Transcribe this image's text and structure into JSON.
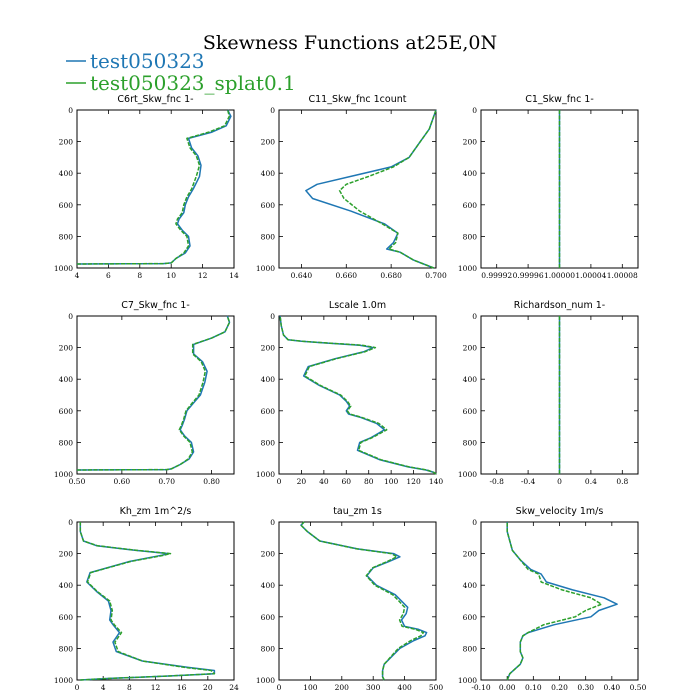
{
  "figure_title": "Skewness Functions at25E,0N",
  "legend": [
    {
      "name": "test050323",
      "color": "#1f77b4"
    },
    {
      "name": "test050323_splat0.1",
      "color": "#2ca02c"
    }
  ],
  "chart_data": [
    {
      "type": "line",
      "title": "C6rt_Skw_fnc",
      "unit": "1-",
      "xlim": [
        4,
        14
      ],
      "ylim": [
        1000,
        0
      ],
      "xticks": [
        4,
        6,
        8,
        10,
        12,
        14
      ],
      "xtick_labels": [
        "4",
        "6",
        "8",
        "10",
        "12",
        "14"
      ],
      "yticks": [
        0,
        200,
        400,
        600,
        800,
        1000
      ],
      "ytick_labels": [
        "0",
        "200",
        "400",
        "600",
        "800",
        "1000"
      ],
      "series": [
        {
          "name": "test050323",
          "x": [
            4.0,
            9.5,
            10.0,
            10.3,
            10.9,
            11.2,
            11.1,
            10.7,
            10.4,
            10.5,
            10.8,
            10.9,
            11.1,
            11.4,
            11.8,
            11.9,
            11.7,
            11.3,
            11.1,
            12.6,
            13.5,
            13.8,
            13.6
          ],
          "y": [
            975,
            972,
            968,
            940,
            905,
            860,
            800,
            760,
            720,
            690,
            650,
            600,
            550,
            500,
            420,
            350,
            290,
            240,
            180,
            140,
            100,
            40,
            0
          ]
        },
        {
          "name": "test050323_splat0.1",
          "x": [
            4.0,
            9.5,
            10.0,
            10.3,
            10.8,
            11.1,
            11.0,
            10.6,
            10.3,
            10.4,
            10.7,
            10.8,
            11.0,
            11.3,
            11.6,
            11.8,
            11.6,
            11.2,
            11.0,
            12.4,
            13.4,
            13.7,
            13.6
          ],
          "y": [
            975,
            972,
            968,
            940,
            905,
            860,
            800,
            760,
            720,
            690,
            650,
            600,
            550,
            500,
            420,
            350,
            290,
            240,
            180,
            140,
            100,
            40,
            0
          ]
        }
      ]
    },
    {
      "type": "line",
      "title": "C11_Skw_fnc",
      "unit": "1count",
      "xlim": [
        0.63,
        0.7
      ],
      "ylim": [
        1000,
        0
      ],
      "xticks": [
        0.64,
        0.66,
        0.68,
        0.7
      ],
      "xtick_labels": [
        "0.640",
        "0.660",
        "0.680",
        "0.700"
      ],
      "yticks": [
        0,
        200,
        400,
        600,
        800,
        1000
      ],
      "ytick_labels": [
        "0",
        "200",
        "400",
        "600",
        "800",
        "1000"
      ],
      "series": [
        {
          "name": "test050323",
          "x": [
            0.699,
            0.69,
            0.684,
            0.678,
            0.681,
            0.683,
            0.677,
            0.662,
            0.645,
            0.642,
            0.647,
            0.662,
            0.68,
            0.688,
            0.693,
            0.697,
            0.7
          ],
          "y": [
            1000,
            950,
            900,
            880,
            840,
            780,
            720,
            640,
            560,
            510,
            470,
            420,
            360,
            300,
            200,
            120,
            0
          ]
        },
        {
          "name": "test050323_splat0.1",
          "x": [
            0.699,
            0.69,
            0.684,
            0.679,
            0.682,
            0.683,
            0.676,
            0.666,
            0.659,
            0.657,
            0.66,
            0.67,
            0.681,
            0.688,
            0.693,
            0.697,
            0.7
          ],
          "y": [
            1000,
            950,
            900,
            880,
            840,
            780,
            720,
            640,
            560,
            510,
            470,
            420,
            360,
            300,
            200,
            120,
            0
          ]
        }
      ]
    },
    {
      "type": "line",
      "title": "C1_Skw_fnc",
      "unit": "1-",
      "xlim": [
        0.9999,
        1.0001
      ],
      "ylim": [
        1000,
        0
      ],
      "xticks": [
        0.99992,
        0.99996,
        1.0,
        1.00004,
        1.00008
      ],
      "xtick_labels": [
        "0.99992",
        "0.99996",
        "1.00000",
        "1.00004",
        "1.00008"
      ],
      "yticks": [
        0,
        200,
        400,
        600,
        800,
        1000
      ],
      "ytick_labels": [
        "0",
        "200",
        "400",
        "600",
        "800",
        "1000"
      ],
      "series": [
        {
          "name": "test050323",
          "x": [
            1.0,
            1.0
          ],
          "y": [
            1000,
            0
          ]
        },
        {
          "name": "test050323_splat0.1",
          "x": [
            1.0,
            1.0
          ],
          "y": [
            1000,
            0
          ]
        }
      ]
    },
    {
      "type": "line",
      "title": "C7_Skw_fnc",
      "unit": "1-",
      "xlim": [
        0.5,
        0.85
      ],
      "ylim": [
        1000,
        0
      ],
      "xticks": [
        0.5,
        0.6,
        0.7,
        0.8
      ],
      "xtick_labels": [
        "0.50",
        "0.60",
        "0.70",
        "0.80"
      ],
      "yticks": [
        0,
        200,
        400,
        600,
        800,
        1000
      ],
      "ytick_labels": [
        "0",
        "200",
        "400",
        "600",
        "800",
        "1000"
      ],
      "series": [
        {
          "name": "test050323",
          "x": [
            0.5,
            0.7,
            0.71,
            0.73,
            0.75,
            0.76,
            0.755,
            0.74,
            0.73,
            0.735,
            0.74,
            0.745,
            0.76,
            0.775,
            0.785,
            0.79,
            0.78,
            0.76,
            0.76,
            0.8,
            0.83,
            0.84,
            0.835
          ],
          "y": [
            975,
            972,
            968,
            940,
            905,
            860,
            800,
            760,
            720,
            690,
            650,
            600,
            550,
            500,
            420,
            350,
            290,
            240,
            180,
            140,
            100,
            40,
            0
          ]
        },
        {
          "name": "test050323_splat0.1",
          "x": [
            0.5,
            0.7,
            0.71,
            0.73,
            0.748,
            0.757,
            0.752,
            0.738,
            0.728,
            0.733,
            0.738,
            0.743,
            0.757,
            0.772,
            0.781,
            0.786,
            0.777,
            0.758,
            0.758,
            0.8,
            0.83,
            0.84,
            0.835
          ],
          "y": [
            975,
            972,
            968,
            940,
            905,
            860,
            800,
            760,
            720,
            690,
            650,
            600,
            550,
            500,
            420,
            350,
            290,
            240,
            180,
            140,
            100,
            40,
            0
          ]
        }
      ]
    },
    {
      "type": "line",
      "title": "Lscale",
      "unit": "1.0m",
      "xlim": [
        0,
        140
      ],
      "ylim": [
        1000,
        0
      ],
      "xticks": [
        0,
        20,
        40,
        60,
        80,
        100,
        120,
        140
      ],
      "xtick_labels": [
        "0",
        "20",
        "40",
        "60",
        "80",
        "100",
        "120",
        "140"
      ],
      "yticks": [
        0,
        200,
        400,
        600,
        800,
        1000
      ],
      "ytick_labels": [
        "0",
        "200",
        "400",
        "600",
        "800",
        "1000"
      ],
      "series": [
        {
          "name": "test050323",
          "x": [
            140,
            138,
            131,
            115,
            90,
            70,
            72,
            82,
            94,
            87,
            72,
            62,
            60,
            63,
            60,
            54,
            36,
            22,
            26,
            50,
            76,
            84,
            72,
            40,
            20,
            8,
            4,
            2,
            1
          ],
          "y": [
            1000,
            990,
            975,
            955,
            910,
            850,
            800,
            770,
            720,
            680,
            640,
            620,
            600,
            570,
            540,
            500,
            440,
            380,
            320,
            270,
            225,
            200,
            185,
            170,
            160,
            150,
            120,
            60,
            0
          ]
        },
        {
          "name": "test050323_splat0.1",
          "x": [
            140,
            138,
            132,
            116,
            91,
            71,
            73,
            83,
            96,
            89,
            73,
            63,
            61,
            64,
            61,
            55,
            37,
            23,
            27,
            51,
            77,
            86,
            74,
            42,
            21,
            8,
            4,
            2,
            1
          ],
          "y": [
            1000,
            990,
            975,
            955,
            910,
            850,
            800,
            770,
            720,
            680,
            640,
            620,
            600,
            570,
            540,
            500,
            440,
            380,
            320,
            270,
            225,
            200,
            185,
            170,
            160,
            150,
            120,
            60,
            0
          ]
        }
      ]
    },
    {
      "type": "line",
      "title": "Richardson_num",
      "unit": "1-",
      "xlim": [
        -1,
        1
      ],
      "ylim": [
        1000,
        0
      ],
      "xticks": [
        -0.8,
        -0.4,
        0.0,
        0.4,
        0.8
      ],
      "xtick_labels": [
        "-0.8",
        "-0.4",
        "0",
        "0.4",
        "0.8"
      ],
      "yticks": [
        0,
        200,
        400,
        600,
        800,
        1000
      ],
      "ytick_labels": [
        "0",
        "200",
        "400",
        "600",
        "800",
        "1000"
      ],
      "series": [
        {
          "name": "test050323",
          "x": [
            0.0,
            0.0
          ],
          "y": [
            1000,
            0
          ]
        },
        {
          "name": "test050323_splat0.1",
          "x": [
            0.0,
            0.0
          ],
          "y": [
            1000,
            0
          ]
        }
      ]
    },
    {
      "type": "line",
      "title": "Kh_zm",
      "unit": "1m^2/s",
      "xlim": [
        0,
        24
      ],
      "ylim": [
        1000,
        0
      ],
      "xticks": [
        0,
        4,
        8,
        12,
        16,
        20,
        24
      ],
      "xtick_labels": [
        "0",
        "4",
        "8",
        "12",
        "16",
        "20",
        "24"
      ],
      "yticks": [
        0,
        200,
        400,
        600,
        800,
        1000
      ],
      "ytick_labels": [
        "0",
        "200",
        "400",
        "600",
        "800",
        "1000"
      ],
      "series": [
        {
          "name": "test050323",
          "x": [
            0.5,
            5,
            14,
            21,
            21,
            17,
            10,
            6,
            5.5,
            6.5,
            5.5,
            5,
            5.2,
            4.8,
            3,
            1.5,
            2,
            8,
            13,
            14,
            9,
            3,
            1,
            0.5,
            0.5
          ],
          "y": [
            1000,
            990,
            975,
            960,
            940,
            920,
            880,
            820,
            760,
            700,
            650,
            620,
            560,
            500,
            440,
            380,
            320,
            250,
            210,
            200,
            180,
            150,
            120,
            60,
            0
          ]
        },
        {
          "name": "test050323_splat0.1",
          "x": [
            0.5,
            5,
            14,
            21,
            20.5,
            16.5,
            10,
            6.3,
            5.8,
            6.8,
            5.7,
            5.2,
            5.4,
            5,
            3.1,
            1.6,
            2.1,
            8.2,
            13.3,
            14.3,
            9.2,
            3.1,
            1,
            0.5,
            0.5
          ],
          "y": [
            1000,
            990,
            975,
            960,
            940,
            920,
            880,
            820,
            760,
            700,
            650,
            620,
            560,
            500,
            440,
            380,
            320,
            250,
            210,
            200,
            180,
            150,
            120,
            60,
            0
          ]
        }
      ]
    },
    {
      "type": "line",
      "title": "tau_zm",
      "unit": "1s",
      "xlim": [
        0,
        500
      ],
      "ylim": [
        1000,
        0
      ],
      "xticks": [
        0,
        100,
        200,
        300,
        400,
        500
      ],
      "xtick_labels": [
        "0",
        "100",
        "200",
        "300",
        "400",
        "500"
      ],
      "yticks": [
        0,
        200,
        400,
        600,
        800,
        1000
      ],
      "ytick_labels": [
        "0",
        "200",
        "400",
        "600",
        "800",
        "1000"
      ],
      "series": [
        {
          "name": "test050323",
          "x": [
            335,
            330,
            330,
            335,
            355,
            385,
            430,
            465,
            470,
            445,
            400,
            390,
            405,
            410,
            390,
            370,
            310,
            280,
            300,
            350,
            385,
            365,
            250,
            130,
            90,
            70,
            80
          ],
          "y": [
            1000,
            980,
            940,
            900,
            860,
            800,
            750,
            720,
            700,
            680,
            660,
            620,
            580,
            540,
            500,
            460,
            400,
            340,
            290,
            250,
            220,
            200,
            170,
            120,
            60,
            20,
            0
          ]
        },
        {
          "name": "test050323_splat0.1",
          "x": [
            335,
            330,
            330,
            335,
            353,
            380,
            420,
            452,
            460,
            435,
            392,
            384,
            396,
            400,
            382,
            362,
            305,
            278,
            298,
            345,
            375,
            358,
            248,
            130,
            90,
            70,
            80
          ],
          "y": [
            1000,
            980,
            940,
            900,
            860,
            800,
            750,
            720,
            700,
            680,
            660,
            620,
            580,
            540,
            500,
            460,
            400,
            340,
            290,
            250,
            220,
            200,
            170,
            120,
            60,
            20,
            0
          ]
        }
      ]
    },
    {
      "type": "line",
      "title": "Skw_velocity",
      "unit": "1m/s",
      "xlim": [
        -0.1,
        0.5
      ],
      "ylim": [
        1000,
        0
      ],
      "xticks": [
        -0.1,
        0.0,
        0.1,
        0.2,
        0.3,
        0.4,
        0.5
      ],
      "xtick_labels": [
        "-0.10",
        "0.00",
        "0.10",
        "0.20",
        "0.30",
        "0.40",
        "0.50"
      ],
      "yticks": [
        0,
        200,
        400,
        600,
        800,
        1000
      ],
      "ytick_labels": [
        "0",
        "200",
        "400",
        "600",
        "800",
        "1000"
      ],
      "series": [
        {
          "name": "test050323",
          "x": [
            0.0,
            0.01,
            0.05,
            0.06,
            0.05,
            0.05,
            0.06,
            0.08,
            0.18,
            0.32,
            0.35,
            0.42,
            0.37,
            0.25,
            0.15,
            0.13,
            0.09,
            0.05,
            0.02,
            0.01,
            0.0,
            0.0
          ],
          "y": [
            1000,
            960,
            900,
            860,
            820,
            760,
            720,
            700,
            650,
            600,
            560,
            520,
            480,
            430,
            380,
            330,
            300,
            240,
            180,
            120,
            60,
            0
          ]
        },
        {
          "name": "test050323_splat0.1",
          "x": [
            0.0,
            0.01,
            0.05,
            0.06,
            0.05,
            0.05,
            0.06,
            0.08,
            0.14,
            0.26,
            0.3,
            0.36,
            0.32,
            0.21,
            0.13,
            0.12,
            0.08,
            0.05,
            0.02,
            0.01,
            0.0,
            0.0
          ],
          "y": [
            1000,
            960,
            900,
            860,
            820,
            760,
            720,
            700,
            650,
            600,
            560,
            520,
            480,
            430,
            380,
            330,
            300,
            240,
            180,
            120,
            60,
            0
          ]
        }
      ]
    }
  ]
}
